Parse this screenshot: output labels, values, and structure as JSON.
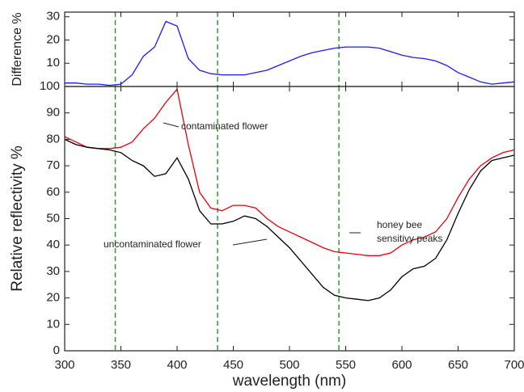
{
  "chart_data": [
    {
      "type": "line",
      "ylabel": "Difference %",
      "x": [
        300,
        310,
        320,
        330,
        340,
        350,
        360,
        370,
        380,
        390,
        400,
        410,
        420,
        430,
        440,
        450,
        460,
        470,
        480,
        490,
        500,
        510,
        520,
        530,
        540,
        550,
        560,
        570,
        580,
        590,
        600,
        610,
        620,
        630,
        640,
        650,
        660,
        670,
        680,
        690,
        700
      ],
      "series": [
        {
          "name": "difference",
          "color": "#1a1aff",
          "values": [
            1.5,
            1.5,
            1,
            1,
            0.5,
            1,
            5,
            13,
            17,
            28,
            26,
            12,
            7,
            5.5,
            5,
            5,
            5,
            6,
            7,
            9,
            11,
            13,
            14.5,
            15.5,
            16.5,
            17,
            17,
            17,
            16.5,
            15,
            13.5,
            12.5,
            12,
            11,
            9,
            6,
            4,
            2,
            1,
            1.5,
            2
          ]
        }
      ],
      "xlim": [
        300,
        700
      ],
      "xticks": [
        300,
        350,
        400,
        450,
        500,
        550,
        600,
        650,
        700
      ],
      "ylim": [
        0,
        32
      ],
      "yticks": [
        10,
        20,
        30
      ],
      "vlines": [
        345,
        436,
        544
      ],
      "vline_color": "#2e9a2e"
    },
    {
      "type": "line",
      "ylabel": "Relative reflectivity %",
      "xlabel": "wavelength (nm)",
      "x": [
        300,
        310,
        320,
        330,
        340,
        350,
        360,
        370,
        380,
        390,
        400,
        410,
        420,
        430,
        440,
        450,
        460,
        470,
        480,
        490,
        500,
        510,
        520,
        530,
        540,
        550,
        560,
        570,
        580,
        590,
        600,
        610,
        620,
        630,
        640,
        650,
        660,
        670,
        680,
        690,
        700
      ],
      "series": [
        {
          "name": "contaminated flower",
          "color": "#e8000b",
          "values": [
            81,
            79,
            77,
            76.5,
            76.5,
            77,
            79,
            84,
            88,
            94,
            99,
            78,
            60,
            54,
            53,
            55,
            55,
            54,
            50,
            47,
            45,
            43,
            41,
            39,
            37.5,
            37,
            36.5,
            36,
            36,
            37,
            40,
            42,
            43,
            45,
            50,
            58,
            65,
            70,
            73,
            75,
            76
          ]
        },
        {
          "name": "uncontaminated flower",
          "color": "#000000",
          "values": [
            80,
            78,
            77,
            76.5,
            76,
            75,
            72,
            70,
            66,
            67,
            73,
            65,
            53,
            48,
            48,
            49,
            51,
            50,
            47,
            43,
            39,
            34,
            29,
            24,
            21,
            20,
            19.5,
            19,
            20,
            23,
            28,
            31,
            32,
            35,
            42,
            52,
            61,
            68,
            72,
            73,
            74
          ]
        }
      ],
      "xlim": [
        300,
        700
      ],
      "xticks": [
        300,
        350,
        400,
        450,
        500,
        550,
        600,
        650,
        700
      ],
      "ylim": [
        0,
        100
      ],
      "yticks": [
        0,
        10,
        20,
        30,
        40,
        50,
        60,
        70,
        80,
        90,
        100
      ],
      "vlines": [
        345,
        436,
        544
      ],
      "vline_color": "#2e9a2e",
      "vline_label": [
        "honey bee",
        "sensitivy peaks"
      ]
    }
  ]
}
